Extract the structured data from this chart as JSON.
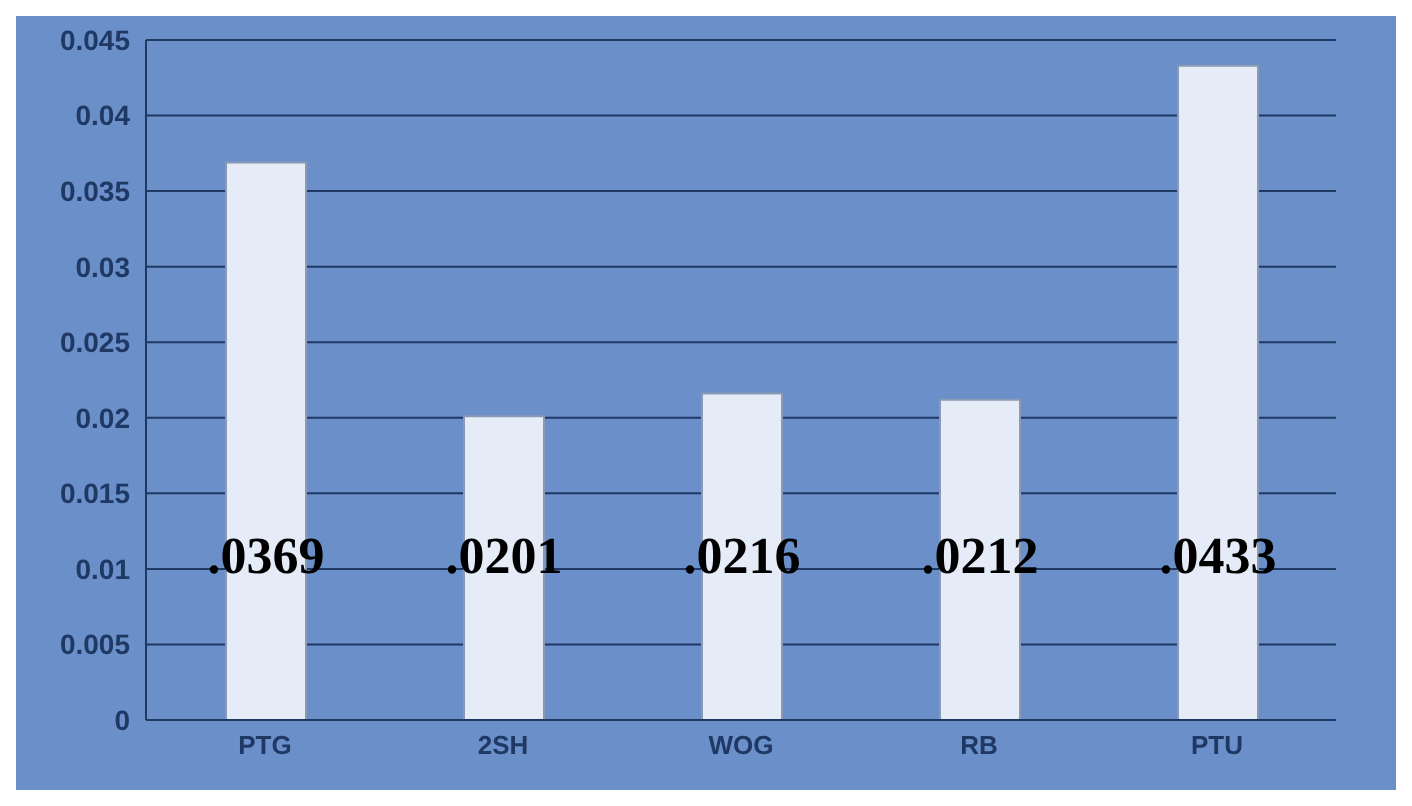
{
  "chart_data": {
    "type": "bar",
    "categories": [
      "PTG",
      "2SH",
      "WOG",
      "RB",
      "PTU"
    ],
    "values": [
      0.0369,
      0.0201,
      0.0216,
      0.0212,
      0.0433
    ],
    "value_labels": [
      ".0369",
      ".0201",
      ".0216",
      ".0212",
      ".0433"
    ],
    "color": "#e6ecf7",
    "ylim": [
      0,
      0.045
    ],
    "yticks": [
      0,
      0.005,
      0.01,
      0.015,
      0.02,
      0.025,
      0.03,
      0.035,
      0.04,
      0.045
    ],
    "grid": "y"
  }
}
